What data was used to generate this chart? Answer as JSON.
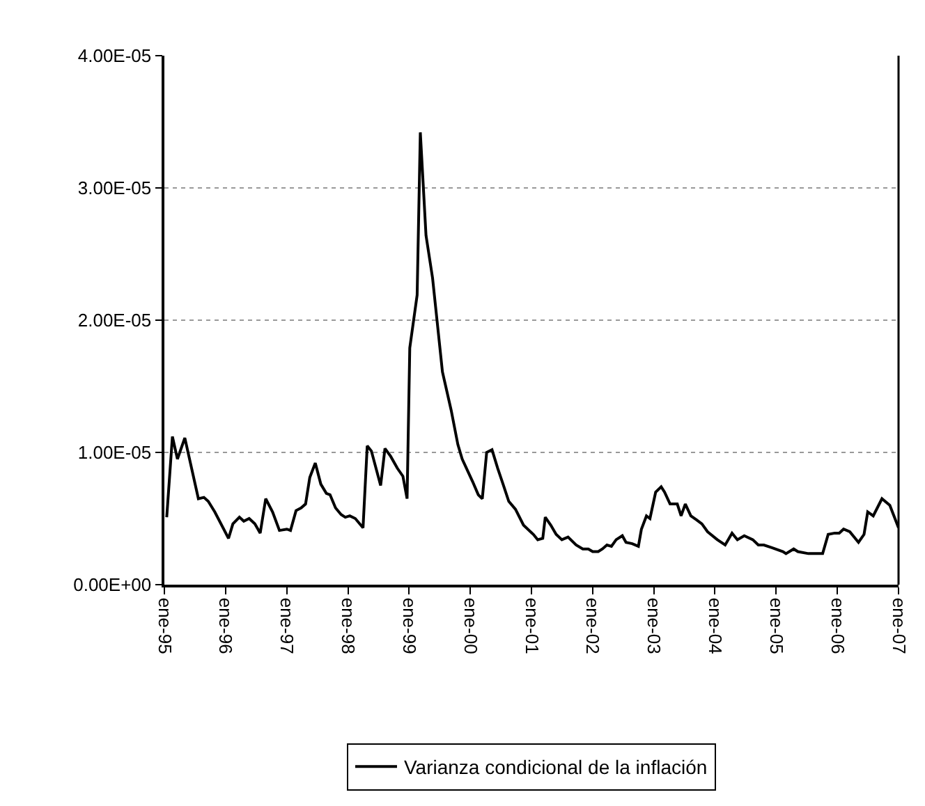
{
  "chart_data": {
    "type": "line",
    "x": [
      "1995-01-15",
      "1995-02-18",
      "1995-03-20",
      "1995-05-03",
      "1995-07-23",
      "1995-08-25",
      "1995-09-20",
      "1995-10-29",
      "1996-01-19",
      "1996-02-14",
      "1996-03-24",
      "1996-04-19",
      "1996-05-21",
      "1996-06-24",
      "1996-07-26",
      "1996-08-28",
      "1996-10-08",
      "1996-11-18",
      "1997-01-01",
      "1997-01-23",
      "1997-02-25",
      "1997-03-27",
      "1997-04-23",
      "1997-05-18",
      "1997-06-20",
      "1997-07-23",
      "1997-08-25",
      "1997-09-16",
      "1997-10-19",
      "1997-11-21",
      "1997-12-16",
      "1998-01-12",
      "1998-02-14",
      "1998-04-01",
      "1998-04-26",
      "1998-05-21",
      "1998-07-15",
      "1998-08-10",
      "1998-09-13",
      "1998-10-23",
      "1998-11-25",
      "1998-12-20",
      "1999-01-05",
      "1999-02-18",
      "1999-03-09",
      "1999-04-12",
      "1999-05-21",
      "1999-07-19",
      "1999-09-09",
      "1999-10-19",
      "1999-11-14",
      "2000-01-15",
      "2000-02-18",
      "2000-03-13",
      "2000-04-08",
      "2000-05-10",
      "2000-06-13",
      "2000-07-15",
      "2000-08-18",
      "2000-09-27",
      "2000-11-14",
      "2001-01-12",
      "2001-02-07",
      "2001-03-09",
      "2001-03-24",
      "2001-04-26",
      "2001-05-28",
      "2001-07-01",
      "2001-08-07",
      "2001-09-24",
      "2001-11-03",
      "2001-12-06",
      "2002-01-01",
      "2002-02-03",
      "2002-02-28",
      "2002-03-27",
      "2002-04-23",
      "2002-05-21",
      "2002-06-27",
      "2002-07-19",
      "2002-08-25",
      "2002-10-01",
      "2002-10-19",
      "2002-11-18",
      "2002-12-09",
      "2003-01-12",
      "2003-02-14",
      "2003-03-06",
      "2003-04-08",
      "2003-05-21",
      "2003-06-13",
      "2003-07-08",
      "2003-08-10",
      "2003-09-13",
      "2003-10-15",
      "2003-11-18",
      "2004-01-15",
      "2004-03-02",
      "2004-04-12",
      "2004-05-14",
      "2004-06-24",
      "2004-08-14",
      "2004-09-16",
      "2004-10-19",
      "2004-12-06",
      "2005-02-10",
      "2005-02-28",
      "2005-04-15",
      "2005-05-10",
      "2005-07-12",
      "2005-10-05",
      "2005-11-07",
      "2005-12-16",
      "2006-01-12",
      "2006-02-07",
      "2006-03-16",
      "2006-05-07",
      "2006-06-09",
      "2006-07-01",
      "2006-08-03",
      "2006-09-24",
      "2006-11-10",
      "2007-01-01"
    ],
    "series": [
      {
        "name": "Varianza condicional de la inflación",
        "color": "#000000",
        "values": [
          5.1e-06,
          1.12e-05,
          9.5e-06,
          1.11e-05,
          6.5e-06,
          6.6e-06,
          6.3e-06,
          5.5e-06,
          3.5e-06,
          4.6e-06,
          5.1e-06,
          4.8e-06,
          5e-06,
          4.6e-06,
          3.9e-06,
          6.5e-06,
          5.5e-06,
          4.1e-06,
          4.2e-06,
          4.1e-06,
          5.6e-06,
          5.8e-06,
          6.1e-06,
          8.1e-06,
          9.2e-06,
          7.6e-06,
          6.9e-06,
          6.8e-06,
          5.8e-06,
          5.3e-06,
          5.1e-06,
          5.2e-06,
          5e-06,
          4.3e-06,
          1.05e-05,
          1.01e-05,
          7.5e-06,
          1.03e-05,
          9.7e-06,
          8.8e-06,
          8.2e-06,
          6.5e-06,
          1.79e-05,
          2.19e-05,
          3.42e-05,
          2.64e-05,
          2.32e-05,
          1.61e-05,
          1.32e-05,
          1.06e-05,
          9.5e-06,
          7.8e-06,
          6.8e-06,
          6.5e-06,
          1e-05,
          1.02e-05,
          8.8e-06,
          7.6e-06,
          6.3e-06,
          5.7e-06,
          4.5e-06,
          3.8e-06,
          3.4e-06,
          3.5e-06,
          5.1e-06,
          4.5e-06,
          3.8e-06,
          3.4e-06,
          3.6e-06,
          3e-06,
          2.7e-06,
          2.7e-06,
          2.5e-06,
          2.5e-06,
          2.7e-06,
          3e-06,
          2.9e-06,
          3.4e-06,
          3.7e-06,
          3.2e-06,
          3.1e-06,
          2.9e-06,
          4.2e-06,
          5.2e-06,
          5e-06,
          7e-06,
          7.4e-06,
          7e-06,
          6.1e-06,
          6.1e-06,
          5.2e-06,
          6.1e-06,
          5.2e-06,
          4.9e-06,
          4.6e-06,
          4e-06,
          3.4e-06,
          3e-06,
          3.9e-06,
          3.4e-06,
          3.7e-06,
          3.4e-06,
          3e-06,
          3e-06,
          2.8e-06,
          2.5e-06,
          2.35e-06,
          2.7e-06,
          2.5e-06,
          2.35e-06,
          2.35e-06,
          3.8e-06,
          3.9e-06,
          3.9e-06,
          4.2e-06,
          4e-06,
          3.2e-06,
          3.8e-06,
          5.5e-06,
          5.2e-06,
          6.5e-06,
          6e-06,
          4.3e-06
        ]
      }
    ],
    "xlim": [
      "1995-01-01",
      "2007-01-01"
    ],
    "xticks": [
      {
        "value": "1995-01-01",
        "label": "ene-95"
      },
      {
        "value": "1996-01-01",
        "label": "ene-96"
      },
      {
        "value": "1997-01-01",
        "label": "ene-97"
      },
      {
        "value": "1998-01-01",
        "label": "ene-98"
      },
      {
        "value": "1999-01-01",
        "label": "ene-99"
      },
      {
        "value": "2000-01-01",
        "label": "ene-00"
      },
      {
        "value": "2001-01-01",
        "label": "ene-01"
      },
      {
        "value": "2002-01-01",
        "label": "ene-02"
      },
      {
        "value": "2003-01-01",
        "label": "ene-03"
      },
      {
        "value": "2004-01-01",
        "label": "ene-04"
      },
      {
        "value": "2005-01-01",
        "label": "ene-05"
      },
      {
        "value": "2006-01-01",
        "label": "ene-06"
      },
      {
        "value": "2007-01-01",
        "label": "ene-07"
      }
    ],
    "ylim": [
      0,
      4e-05
    ],
    "yticks": [
      {
        "value": 0,
        "label": "0.00E+00"
      },
      {
        "value": 1e-05,
        "label": "1.00E-05"
      },
      {
        "value": 2e-05,
        "label": "2.00E-05"
      },
      {
        "value": 3e-05,
        "label": "3.00E-05"
      },
      {
        "value": 4e-05,
        "label": "4.00E-05"
      }
    ],
    "grid": "y",
    "legend": "bottom",
    "marker": "none",
    "line_style": "solid"
  }
}
